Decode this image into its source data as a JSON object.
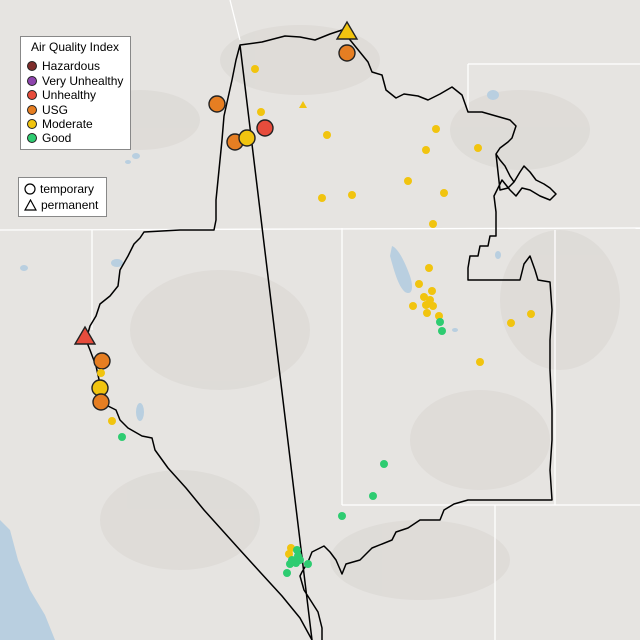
{
  "legend": {
    "title": "Air Quality Index",
    "categories": [
      {
        "label": "Hazardous",
        "color": "#7e2d2b"
      },
      {
        "label": "Very Unhealthy",
        "color": "#8e44ad"
      },
      {
        "label": "Unhealthy",
        "color": "#e74c3c"
      },
      {
        "label": "USG",
        "color": "#e67e22"
      },
      {
        "label": "Moderate",
        "color": "#f1c40f"
      },
      {
        "label": "Good",
        "color": "#2ecc71"
      }
    ]
  },
  "monitor_types": [
    {
      "label": "temporary",
      "shape": "circle-icon"
    },
    {
      "label": "permanent",
      "shape": "triangle-icon"
    }
  ],
  "basemap": {
    "land_color": "#e6e4e1",
    "water_color": "#b9cfe0",
    "boundary_color": "#000000",
    "state_line_color": "#ffffff"
  }
}
